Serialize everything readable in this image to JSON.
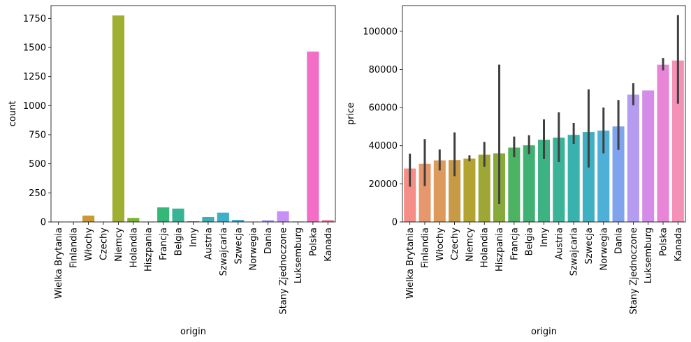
{
  "chart_data": [
    {
      "type": "bar",
      "xlabel": "origin",
      "ylabel": "count",
      "ylim": [
        0,
        1860
      ],
      "yticks": [
        0,
        250,
        500,
        750,
        1000,
        1250,
        1500,
        1750
      ],
      "grid": false,
      "categories": [
        "Wielka Brytania",
        "Finlandia",
        "Włochy",
        "Czechy",
        "Niemcy",
        "Holandia",
        "Hiszpania",
        "Francja",
        "Belgia",
        "Inny",
        "Austria",
        "Szwajcaria",
        "Szwecja",
        "Norwegia",
        "Dania",
        "Stany Zjednoczone",
        "Luksemburg",
        "Polska",
        "Kanada"
      ],
      "values": [
        3,
        3,
        55,
        3,
        1775,
        35,
        3,
        125,
        115,
        6,
        42,
        80,
        18,
        3,
        15,
        92,
        4,
        1465,
        16
      ],
      "colors": [
        "#f77189",
        "#e08b39",
        "#c99a32",
        "#b3a431",
        "#9faf32",
        "#7bb532",
        "#3ebc3e",
        "#35b778",
        "#37b494",
        "#38b2a8",
        "#3ab0b8",
        "#3db0c7",
        "#41aeda",
        "#69a7f1",
        "#9b9cf3",
        "#c690f4",
        "#e67be9",
        "#f26ec7",
        "#f677a6"
      ]
    },
    {
      "type": "bar",
      "xlabel": "origin",
      "ylabel": "price",
      "ylim": [
        0,
        113500
      ],
      "yticks": [
        0,
        20000,
        40000,
        60000,
        80000,
        100000
      ],
      "grid": false,
      "categories": [
        "Wielka Brytania",
        "Finlandia",
        "Włochy",
        "Czechy",
        "Niemcy",
        "Holandia",
        "Hiszpania",
        "Francja",
        "Belgia",
        "Inny",
        "Austria",
        "Szwajcaria",
        "Szwecja",
        "Norwegia",
        "Dania",
        "Stany Zjednoczone",
        "Luksemburg",
        "Polska",
        "Kanada"
      ],
      "values": [
        28000,
        30500,
        32300,
        32500,
        33200,
        35300,
        36000,
        39000,
        40200,
        43100,
        44200,
        45700,
        47200,
        47900,
        50100,
        66800,
        69000,
        82500,
        84700
      ],
      "error_low": [
        18500,
        18800,
        27000,
        24000,
        31800,
        29000,
        9500,
        34000,
        35500,
        33000,
        31500,
        41000,
        28500,
        36000,
        37800,
        61200,
        69000,
        79500,
        62000
      ],
      "error_high": [
        35800,
        43500,
        38000,
        47000,
        35000,
        42000,
        82500,
        44800,
        45500,
        53800,
        57500,
        52000,
        69500,
        60000,
        64000,
        72800,
        69000,
        86000,
        108500
      ],
      "colors": [
        "#f48e87",
        "#e7976c",
        "#dc9a5d",
        "#c99a46",
        "#b3a431",
        "#9ea736",
        "#87aa3a",
        "#4bb361",
        "#40b172",
        "#3db283",
        "#3ab397",
        "#39b1ad",
        "#3fb0c1",
        "#4eafd7",
        "#7fa3ec",
        "#b59cf0",
        "#d48ce8",
        "#e985d6",
        "#f491b6"
      ]
    }
  ]
}
